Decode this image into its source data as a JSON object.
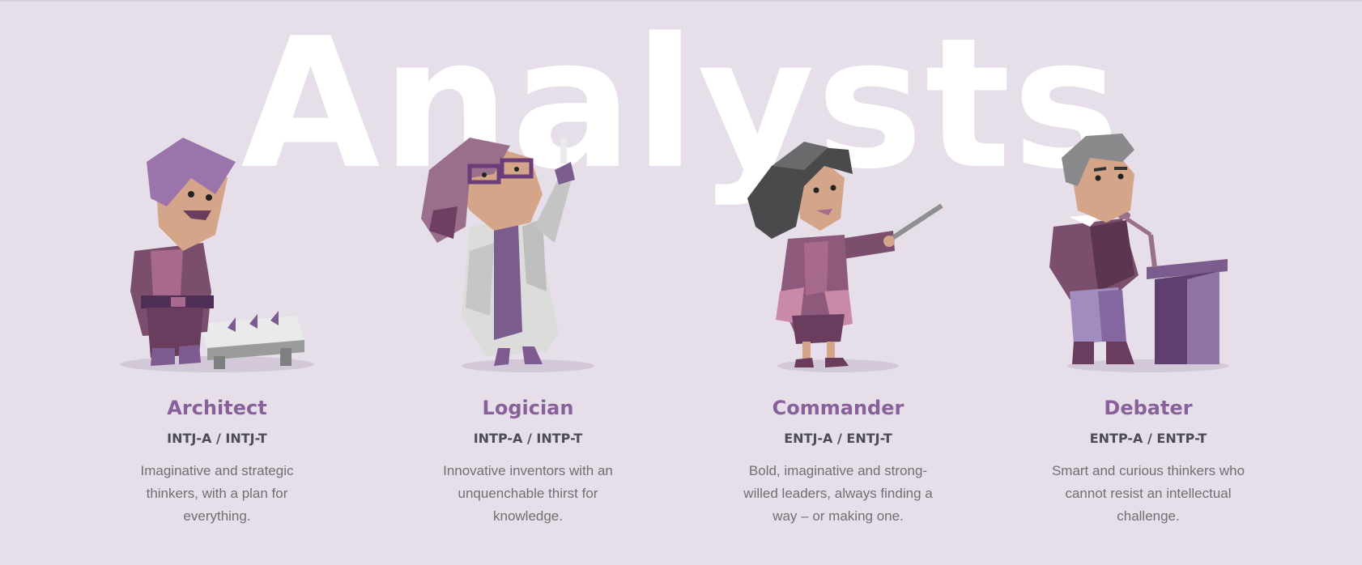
{
  "section": {
    "title": "Analysts"
  },
  "colors": {
    "background": "#e6dfe9",
    "title_accent": "#88619a",
    "code_text": "#4c4c56",
    "desc_text": "#6f6f74",
    "watermark": "#ffffff"
  },
  "cards": [
    {
      "name": "Architect",
      "codes": "INTJ-A / INTJ-T",
      "description": "Imaginative and strategic thinkers, with a plan for everything.",
      "illustration": "architect-figure-with-chessboard"
    },
    {
      "name": "Logician",
      "codes": "INTP-A / INTP-T",
      "description": "Innovative inventors with an unquenchable thirst for knowledge.",
      "illustration": "logician-figure-in-lab-coat"
    },
    {
      "name": "Commander",
      "codes": "ENTJ-A / ENTJ-T",
      "description": "Bold, imaginative and strong-willed leaders, always finding a way – or making one.",
      "illustration": "commander-figure-with-pointer"
    },
    {
      "name": "Debater",
      "codes": "ENTP-A / ENTP-T",
      "description": "Smart and curious thinkers who cannot resist an intellectual challenge.",
      "illustration": "debater-figure-at-podium"
    }
  ]
}
